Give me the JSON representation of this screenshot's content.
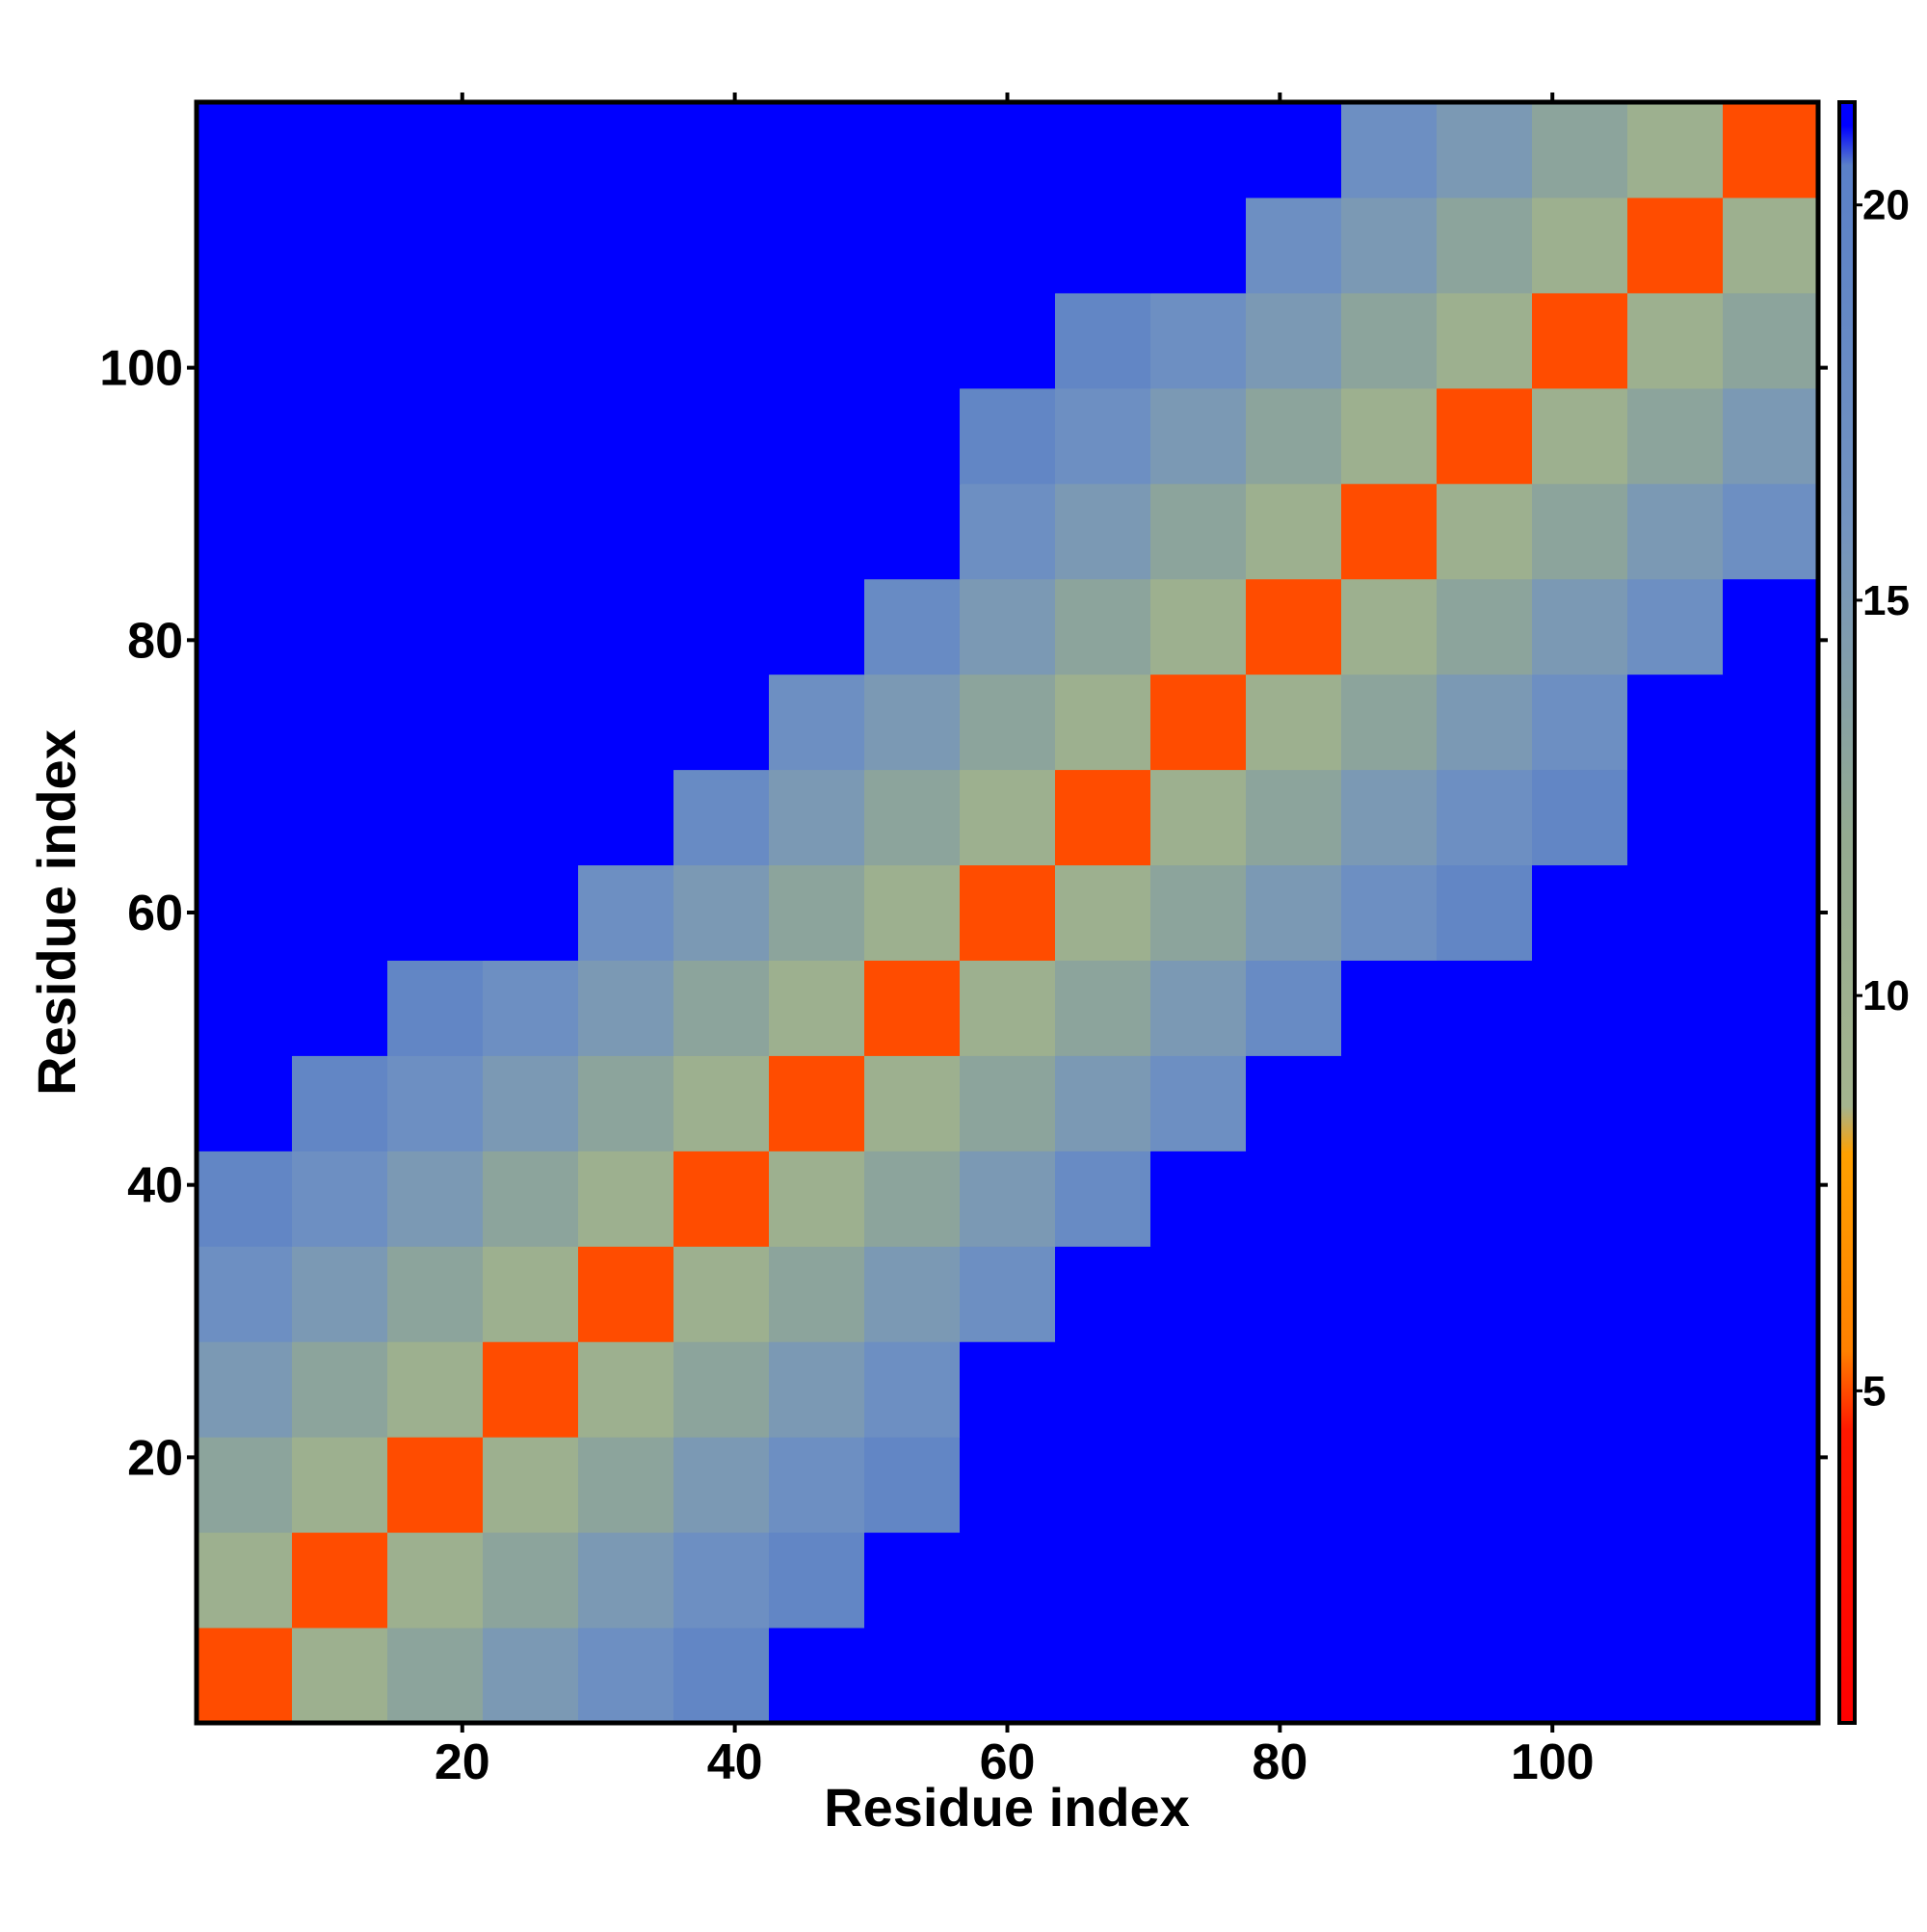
{
  "chart_data": {
    "type": "heatmap",
    "xlabel": "Residue index",
    "ylabel": "Residue index",
    "x_bins": [
      0.5,
      7.5,
      14.5,
      21.5,
      28.5,
      35.5,
      42.5,
      49.5,
      56.5,
      63.5,
      70.5,
      77.5,
      84.5,
      91.5,
      98.5,
      105.5,
      112.5,
      119.5
    ],
    "y_bins": [
      0.5,
      7.5,
      14.5,
      21.5,
      28.5,
      35.5,
      42.5,
      49.5,
      56.5,
      63.5,
      70.5,
      77.5,
      84.5,
      91.5,
      98.5,
      105.5,
      112.5,
      119.5
    ],
    "z": [
      [
        5,
        10,
        13,
        15,
        17,
        19,
        21,
        21,
        21,
        21,
        21,
        21,
        21,
        21,
        21,
        21,
        21
      ],
      [
        10,
        5,
        10,
        13,
        15,
        17,
        19,
        21,
        21,
        21,
        21,
        21,
        21,
        21,
        21,
        21,
        21
      ],
      [
        13,
        10,
        5,
        10,
        13,
        15,
        17,
        19,
        21,
        21,
        21,
        21,
        21,
        21,
        21,
        21,
        21
      ],
      [
        15,
        13,
        10,
        5,
        10,
        13,
        15,
        17,
        21,
        21,
        21,
        21,
        21,
        21,
        21,
        21,
        21
      ],
      [
        17,
        15,
        13,
        10,
        5,
        10,
        13,
        15,
        17,
        21,
        21,
        21,
        21,
        21,
        21,
        21,
        21
      ],
      [
        19,
        17,
        15,
        13,
        10,
        5,
        10,
        13,
        15,
        18,
        21,
        21,
        21,
        21,
        21,
        21,
        21
      ],
      [
        21,
        19,
        17,
        15,
        13,
        10,
        5,
        10,
        13,
        15,
        17,
        21,
        21,
        21,
        21,
        21,
        21
      ],
      [
        21,
        21,
        19,
        17,
        15,
        13,
        10,
        5,
        10,
        13,
        15,
        18,
        21,
        21,
        21,
        21,
        21
      ],
      [
        21,
        21,
        21,
        21,
        17,
        15,
        13,
        10,
        5,
        10,
        13,
        15,
        17,
        19,
        21,
        21,
        21
      ],
      [
        21,
        21,
        21,
        21,
        21,
        18,
        15,
        13,
        10,
        5,
        10,
        13,
        15,
        17,
        19,
        21,
        21
      ],
      [
        21,
        21,
        21,
        21,
        21,
        21,
        17,
        15,
        13,
        10,
        5,
        10,
        13,
        15,
        17,
        21,
        21
      ],
      [
        21,
        21,
        21,
        21,
        21,
        21,
        21,
        18,
        15,
        13,
        10,
        5,
        10,
        13,
        15,
        17,
        21
      ],
      [
        21,
        21,
        21,
        21,
        21,
        21,
        21,
        21,
        17,
        15,
        13,
        10,
        5,
        10,
        13,
        15,
        17
      ],
      [
        21,
        21,
        21,
        21,
        21,
        21,
        21,
        21,
        19,
        17,
        15,
        13,
        10,
        5,
        10,
        13,
        15
      ],
      [
        21,
        21,
        21,
        21,
        21,
        21,
        21,
        21,
        21,
        19,
        17,
        15,
        13,
        10,
        5,
        10,
        13
      ],
      [
        21,
        21,
        21,
        21,
        21,
        21,
        21,
        21,
        21,
        21,
        21,
        17,
        15,
        13,
        10,
        5,
        10
      ],
      [
        21,
        21,
        21,
        21,
        21,
        21,
        21,
        21,
        21,
        21,
        21,
        21,
        17,
        15,
        13,
        10,
        5
      ]
    ],
    "xlim": [
      0.5,
      119.5
    ],
    "ylim": [
      0.5,
      119.5
    ],
    "xticks": [
      20,
      40,
      60,
      80,
      100
    ],
    "yticks": [
      20,
      40,
      60,
      80,
      100
    ],
    "zlim": [
      0.8,
      21.3
    ],
    "zticks": [
      5,
      10,
      15,
      20
    ],
    "colorscale": [
      [
        0.8,
        "#ff0000"
      ],
      [
        4.5,
        "#ff1800"
      ],
      [
        5.5,
        "#ff8000"
      ],
      [
        8,
        "#ffa000"
      ],
      [
        8.6,
        "#a4b48e"
      ],
      [
        12,
        "#94aa90"
      ],
      [
        16,
        "#7393c0"
      ],
      [
        20.5,
        "#5a80c8"
      ],
      [
        21,
        "#0000ff"
      ]
    ]
  }
}
